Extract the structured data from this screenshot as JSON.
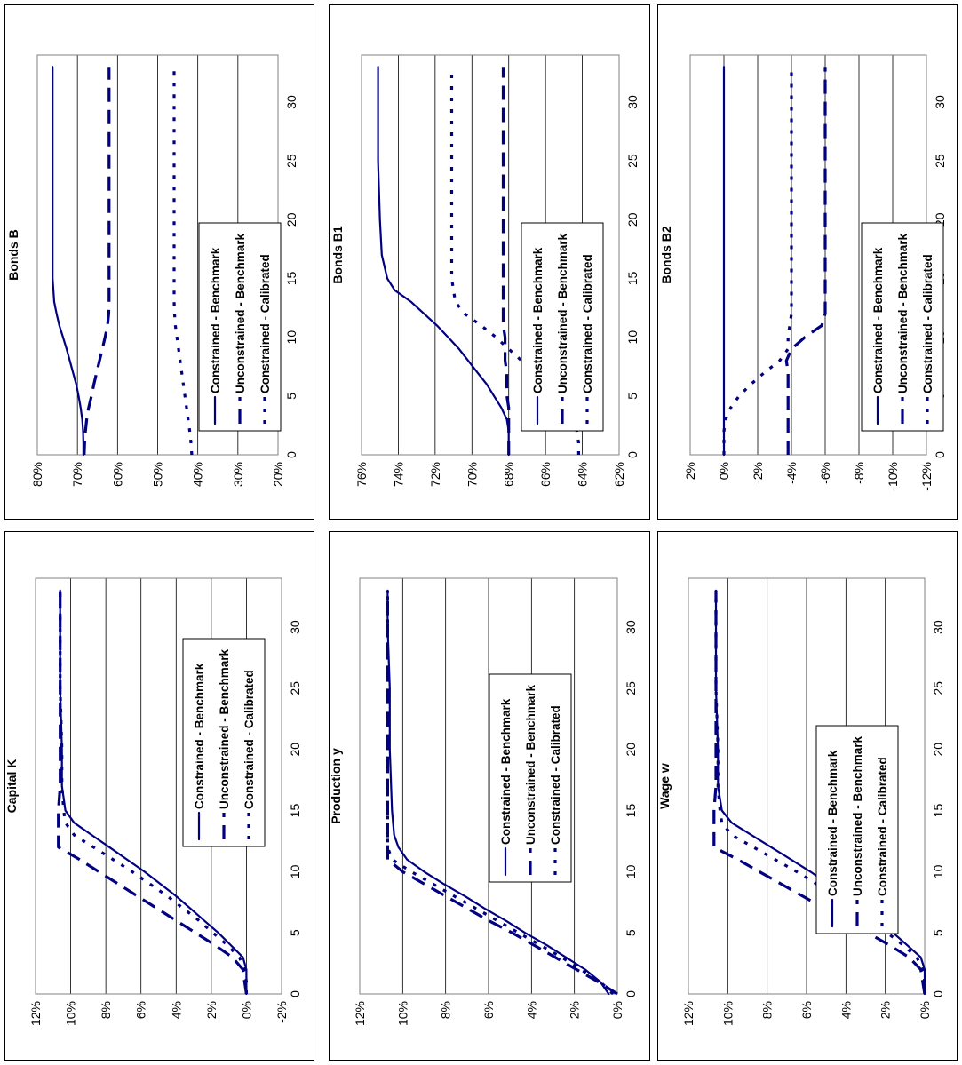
{
  "chart_data": [
    {
      "id": "capital",
      "type": "line",
      "title": "Capital K",
      "ylim": [
        -0.02,
        0.12
      ],
      "yticks": [
        "-2%",
        "0%",
        "2%",
        "4%",
        "6%",
        "8%",
        "10%",
        "12%"
      ],
      "xlim": [
        0,
        34
      ],
      "xticks": [
        "0",
        "5",
        "10",
        "15",
        "20",
        "25",
        "30"
      ],
      "grid": true,
      "legend_position": "top-right",
      "series": [
        {
          "name": "Constrained - Benchmark",
          "style": "solid",
          "x": [
            0,
            1,
            2,
            3,
            4,
            5,
            6,
            7,
            8,
            9,
            10,
            11,
            12,
            13,
            14,
            15,
            16,
            17,
            20,
            25,
            30,
            33
          ],
          "y": [
            0,
            0,
            0,
            0.002,
            0.009,
            0.016,
            0.024,
            0.032,
            0.04,
            0.049,
            0.058,
            0.068,
            0.078,
            0.088,
            0.098,
            0.103,
            0.104,
            0.105,
            0.105,
            0.106,
            0.106,
            0.106
          ]
        },
        {
          "name": "Unconstrained - Benchmark",
          "style": "dash",
          "x": [
            0,
            1,
            2,
            3,
            4,
            5,
            6,
            7,
            8,
            9,
            10,
            11,
            12,
            13,
            14,
            15,
            17,
            20,
            25,
            30,
            33
          ],
          "y": [
            0,
            0.001,
            0.002,
            0.008,
            0.018,
            0.029,
            0.04,
            0.051,
            0.062,
            0.073,
            0.084,
            0.095,
            0.107,
            0.107,
            0.107,
            0.107,
            0.106,
            0.106,
            0.106,
            0.106,
            0.106
          ]
        },
        {
          "name": "Constrained - Calibrated",
          "style": "dot",
          "x": [
            0,
            1,
            2,
            3,
            4,
            5,
            6,
            7,
            8,
            9,
            10,
            11,
            12,
            13,
            14,
            15,
            17,
            20,
            25,
            30,
            33
          ],
          "y": [
            0,
            0,
            0.001,
            0.004,
            0.011,
            0.019,
            0.027,
            0.036,
            0.045,
            0.055,
            0.065,
            0.076,
            0.087,
            0.098,
            0.103,
            0.104,
            0.105,
            0.105,
            0.106,
            0.106,
            0.106
          ]
        }
      ]
    },
    {
      "id": "production",
      "type": "line",
      "title": "Production y",
      "ylim": [
        0,
        0.12
      ],
      "yticks": [
        "0%",
        "2%",
        "4%",
        "6%",
        "8%",
        "10%",
        "12%"
      ],
      "xlim": [
        0,
        34
      ],
      "xticks": [
        "0",
        "5",
        "10",
        "15",
        "20",
        "25",
        "30"
      ],
      "grid": true,
      "legend_position": "top-right",
      "series": [
        {
          "name": "Constrained - Benchmark",
          "style": "solid",
          "x": [
            0,
            1,
            2,
            3,
            4,
            5,
            6,
            7,
            8,
            9,
            10,
            11,
            12,
            13,
            15,
            20,
            25,
            30,
            33
          ],
          "y": [
            0.004,
            0.008,
            0.015,
            0.024,
            0.033,
            0.043,
            0.052,
            0.062,
            0.071,
            0.081,
            0.09,
            0.098,
            0.102,
            0.104,
            0.105,
            0.106,
            0.106,
            0.107,
            0.107
          ]
        },
        {
          "name": "Unconstrained - Benchmark",
          "style": "dash",
          "x": [
            0,
            1,
            2,
            3,
            4,
            5,
            6,
            7,
            8,
            9,
            10,
            11,
            12,
            13,
            15,
            20,
            25,
            30,
            33
          ],
          "y": [
            0,
            0.009,
            0.019,
            0.029,
            0.039,
            0.049,
            0.06,
            0.07,
            0.08,
            0.09,
            0.1,
            0.107,
            0.107,
            0.107,
            0.107,
            0.107,
            0.107,
            0.107,
            0.107
          ]
        },
        {
          "name": "Constrained - Calibrated",
          "style": "dot",
          "x": [
            0,
            1,
            2,
            3,
            4,
            5,
            6,
            7,
            8,
            9,
            10,
            11,
            12,
            13,
            15,
            20,
            25,
            30,
            33
          ],
          "y": [
            0.002,
            0.008,
            0.017,
            0.026,
            0.036,
            0.046,
            0.056,
            0.066,
            0.076,
            0.086,
            0.096,
            0.105,
            0.107,
            0.107,
            0.107,
            0.107,
            0.107,
            0.107,
            0.107
          ]
        }
      ]
    },
    {
      "id": "wage",
      "type": "line",
      "title": "Wage w",
      "ylim": [
        0,
        0.12
      ],
      "yticks": [
        "0%",
        "2%",
        "4%",
        "6%",
        "8%",
        "10%",
        "12%"
      ],
      "xlim": [
        0,
        34
      ],
      "xticks": [
        "0",
        "5",
        "10",
        "15",
        "20",
        "25",
        "30"
      ],
      "grid": true,
      "legend_position": "top-right",
      "series": [
        {
          "name": "Constrained - Benchmark",
          "style": "solid",
          "x": [
            0,
            1,
            2,
            3,
            4,
            5,
            6,
            7,
            8,
            9,
            10,
            11,
            12,
            13,
            14,
            15,
            16,
            17,
            20,
            25,
            30,
            33
          ],
          "y": [
            0,
            0,
            0,
            0.002,
            0.009,
            0.016,
            0.024,
            0.032,
            0.04,
            0.049,
            0.058,
            0.068,
            0.078,
            0.088,
            0.098,
            0.103,
            0.104,
            0.105,
            0.105,
            0.106,
            0.106,
            0.106
          ]
        },
        {
          "name": "Unconstrained - Benchmark",
          "style": "dash",
          "x": [
            0,
            1,
            2,
            3,
            4,
            5,
            6,
            7,
            8,
            9,
            10,
            11,
            12,
            13,
            14,
            15,
            17,
            20,
            25,
            30,
            33
          ],
          "y": [
            0,
            0.001,
            0.002,
            0.008,
            0.018,
            0.029,
            0.04,
            0.051,
            0.062,
            0.073,
            0.084,
            0.095,
            0.107,
            0.107,
            0.107,
            0.107,
            0.106,
            0.106,
            0.106,
            0.106,
            0.106
          ]
        },
        {
          "name": "Constrained - Calibrated",
          "style": "dot",
          "x": [
            0,
            1,
            2,
            3,
            4,
            5,
            6,
            7,
            8,
            9,
            10,
            11,
            12,
            13,
            14,
            15,
            17,
            20,
            25,
            30,
            33
          ],
          "y": [
            0,
            0,
            0.001,
            0.004,
            0.011,
            0.019,
            0.027,
            0.036,
            0.045,
            0.055,
            0.065,
            0.076,
            0.087,
            0.098,
            0.103,
            0.104,
            0.105,
            0.105,
            0.106,
            0.106,
            0.106
          ]
        }
      ]
    },
    {
      "id": "bondsB",
      "type": "line",
      "title": "Bonds B",
      "ylim": [
        0.2,
        0.8
      ],
      "yticks": [
        "20%",
        "30%",
        "40%",
        "50%",
        "60%",
        "70%",
        "80%"
      ],
      "xlim": [
        0,
        34
      ],
      "xticks": [
        "0",
        "5",
        "10",
        "15",
        "20",
        "25",
        "30"
      ],
      "grid": true,
      "legend_position": "bottom-right",
      "series": [
        {
          "name": "Constrained - Benchmark",
          "style": "solid",
          "x": [
            0,
            1,
            2,
            3,
            4,
            5,
            6,
            7,
            8,
            9,
            10,
            11,
            12,
            13,
            15,
            20,
            25,
            30,
            33
          ],
          "y": [
            0.685,
            0.685,
            0.686,
            0.688,
            0.692,
            0.697,
            0.703,
            0.711,
            0.719,
            0.727,
            0.736,
            0.745,
            0.752,
            0.758,
            0.762,
            0.762,
            0.762,
            0.762,
            0.762
          ]
        },
        {
          "name": "Unconstrained - Benchmark",
          "style": "dash",
          "x": [
            0,
            1,
            2,
            3,
            4,
            5,
            6,
            7,
            8,
            9,
            10,
            11,
            12,
            13,
            15,
            20,
            25,
            30,
            33
          ],
          "y": [
            0.683,
            0.682,
            0.68,
            0.677,
            0.672,
            0.665,
            0.659,
            0.652,
            0.645,
            0.638,
            0.631,
            0.625,
            0.622,
            0.621,
            0.621,
            0.621,
            0.621,
            0.621,
            0.621
          ]
        },
        {
          "name": "Constrained - Calibrated",
          "style": "dot",
          "x": [
            0,
            1,
            2,
            3,
            4,
            5,
            6,
            7,
            8,
            9,
            10,
            11,
            12,
            13,
            15,
            20,
            25,
            30,
            33
          ],
          "y": [
            0.415,
            0.417,
            0.42,
            0.424,
            0.428,
            0.432,
            0.436,
            0.44,
            0.444,
            0.448,
            0.452,
            0.456,
            0.458,
            0.459,
            0.459,
            0.459,
            0.459,
            0.459,
            0.459
          ]
        }
      ]
    },
    {
      "id": "bondsB1",
      "type": "line",
      "title": "Bonds B1",
      "ylim": [
        0.62,
        0.76
      ],
      "yticks": [
        "62%",
        "64%",
        "66%",
        "68%",
        "70%",
        "72%",
        "74%",
        "76%"
      ],
      "xlim": [
        0,
        34
      ],
      "xticks": [
        "0",
        "5",
        "10",
        "15",
        "20",
        "25",
        "30"
      ],
      "grid": true,
      "legend_position": "top-right",
      "series": [
        {
          "name": "Constrained - Benchmark",
          "style": "solid",
          "x": [
            0,
            1,
            2,
            3,
            4,
            5,
            6,
            7,
            8,
            9,
            10,
            11,
            12,
            13,
            14,
            15,
            17,
            20,
            25,
            30,
            33
          ],
          "y": [
            0.68,
            0.68,
            0.68,
            0.681,
            0.684,
            0.688,
            0.692,
            0.697,
            0.702,
            0.707,
            0.713,
            0.719,
            0.726,
            0.733,
            0.742,
            0.746,
            0.749,
            0.75,
            0.751,
            0.751,
            0.751
          ]
        },
        {
          "name": "Unconstrained - Benchmark",
          "style": "dash",
          "x": [
            0,
            1,
            2,
            3,
            4,
            5,
            6,
            7,
            8,
            9,
            10,
            11,
            12,
            13,
            15,
            20,
            25,
            30,
            33
          ],
          "y": [
            0.68,
            0.68,
            0.68,
            0.68,
            0.68,
            0.681,
            0.681,
            0.681,
            0.682,
            0.682,
            0.682,
            0.683,
            0.683,
            0.683,
            0.683,
            0.683,
            0.683,
            0.683,
            0.683
          ]
        },
        {
          "name": "Constrained - Calibrated",
          "style": "dot",
          "x": [
            0,
            1,
            2,
            3,
            4,
            5,
            6,
            7,
            8,
            9,
            10,
            11,
            12,
            13,
            15,
            20,
            25,
            30,
            33
          ],
          "y": [
            0.642,
            0.642,
            0.643,
            0.645,
            0.65,
            0.655,
            0.661,
            0.667,
            0.673,
            0.68,
            0.687,
            0.695,
            0.704,
            0.709,
            0.711,
            0.711,
            0.711,
            0.711,
            0.711
          ]
        }
      ]
    },
    {
      "id": "bondsB2",
      "type": "line",
      "title": "Bonds B2",
      "ylim": [
        -0.12,
        0.02
      ],
      "yticks": [
        "-12%",
        "-10%",
        "-8%",
        "-6%",
        "-4%",
        "-2%",
        "0%",
        "2%"
      ],
      "xlim": [
        0,
        34
      ],
      "xticks": [
        "0",
        "5",
        "10",
        "15",
        "20",
        "25",
        "30"
      ],
      "grid": true,
      "legend_position": "bottom-right",
      "series": [
        {
          "name": "Constrained - Benchmark",
          "style": "solid",
          "x": [
            0,
            5,
            10,
            15,
            20,
            25,
            30,
            33
          ],
          "y": [
            0.0,
            0.0,
            0.0,
            0.0,
            0.0,
            0.0,
            0.0,
            0.0
          ]
        },
        {
          "name": "Unconstrained - Benchmark",
          "style": "dash",
          "x": [
            0,
            1,
            2,
            3,
            4,
            5,
            6,
            7,
            8,
            9,
            10,
            11,
            12,
            13,
            15,
            20,
            25,
            30,
            33
          ],
          "y": [
            -0.038,
            -0.038,
            -0.038,
            -0.038,
            -0.038,
            -0.038,
            -0.038,
            -0.038,
            -0.037,
            -0.04,
            -0.048,
            -0.058,
            -0.06,
            -0.06,
            -0.06,
            -0.06,
            -0.06,
            -0.06,
            -0.06
          ]
        },
        {
          "name": "Constrained - Calibrated",
          "style": "dot",
          "x": [
            0,
            1,
            2,
            3,
            4,
            5,
            6,
            7,
            8,
            9,
            10,
            11,
            12,
            13,
            15,
            20,
            25,
            30,
            33
          ],
          "y": [
            0.0,
            0.0,
            0.0,
            -0.001,
            -0.004,
            -0.009,
            -0.016,
            -0.024,
            -0.033,
            -0.038,
            -0.038,
            -0.039,
            -0.04,
            -0.04,
            -0.04,
            -0.04,
            -0.04,
            -0.04,
            -0.04
          ]
        }
      ]
    }
  ]
}
